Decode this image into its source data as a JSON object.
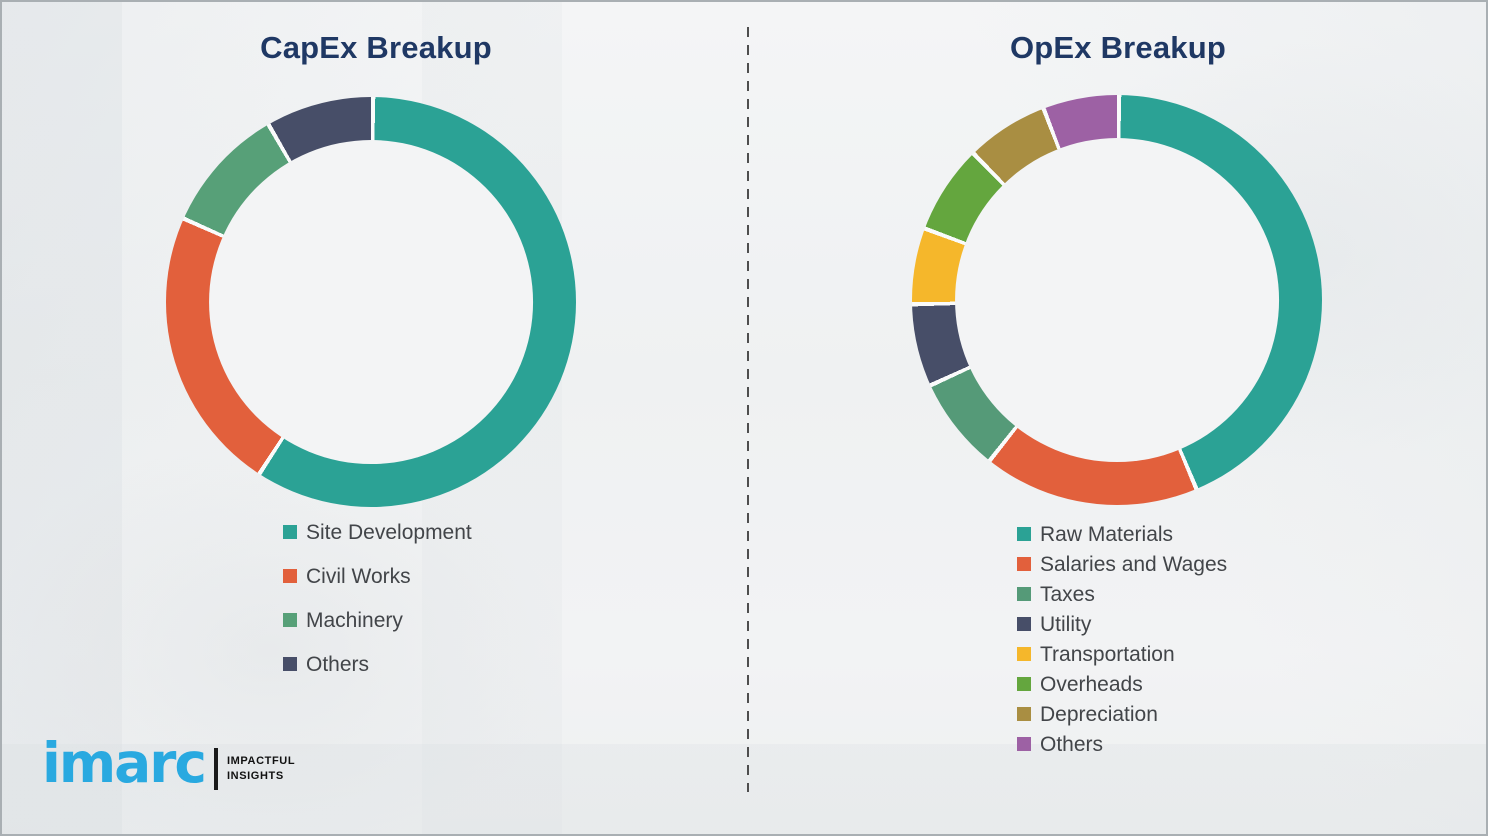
{
  "chart_data": [
    {
      "type": "pie",
      "subtype": "donut",
      "title": "CapEx Breakup",
      "labels": [
        "Site Development",
        "Civil Works",
        "Machinery",
        "Others"
      ],
      "values": [
        59,
        22.5,
        10,
        8.5
      ],
      "unit": "percent-estimated-from-arc",
      "colors": [
        "#2ba295",
        "#e2603c",
        "#57a078",
        "#474e68"
      ],
      "legend_position": "below",
      "start_angle_deg": 0,
      "direction": "clockwise",
      "hole_ratio": 0.79
    },
    {
      "type": "pie",
      "subtype": "donut",
      "title": "OpEx Breakup",
      "labels": [
        "Raw Materials",
        "Salaries and Wages",
        "Taxes",
        "Utility",
        "Transportation",
        "Overheads",
        "Depreciation",
        "Others"
      ],
      "values": [
        43.5,
        17,
        7.5,
        6.5,
        6,
        7,
        6.5,
        6
      ],
      "unit": "percent-estimated-from-arc",
      "colors": [
        "#2ba295",
        "#e2603c",
        "#559a78",
        "#474e68",
        "#f5b72b",
        "#64a63e",
        "#a98e42",
        "#9d61a4"
      ],
      "legend_position": "below",
      "start_angle_deg": 0,
      "direction": "clockwise",
      "hole_ratio": 0.79
    }
  ],
  "logo": {
    "brand": "imarc",
    "tagline_line1": "IMPACTFUL",
    "tagline_line2": "INSIGHTS"
  },
  "style": {
    "title_color": "#1f3864",
    "legend_text_color": "#424549",
    "divider_color": "#4e4e4e",
    "brand_blue": "#29a9e0",
    "segment_gap_color": "#fafbfb"
  }
}
